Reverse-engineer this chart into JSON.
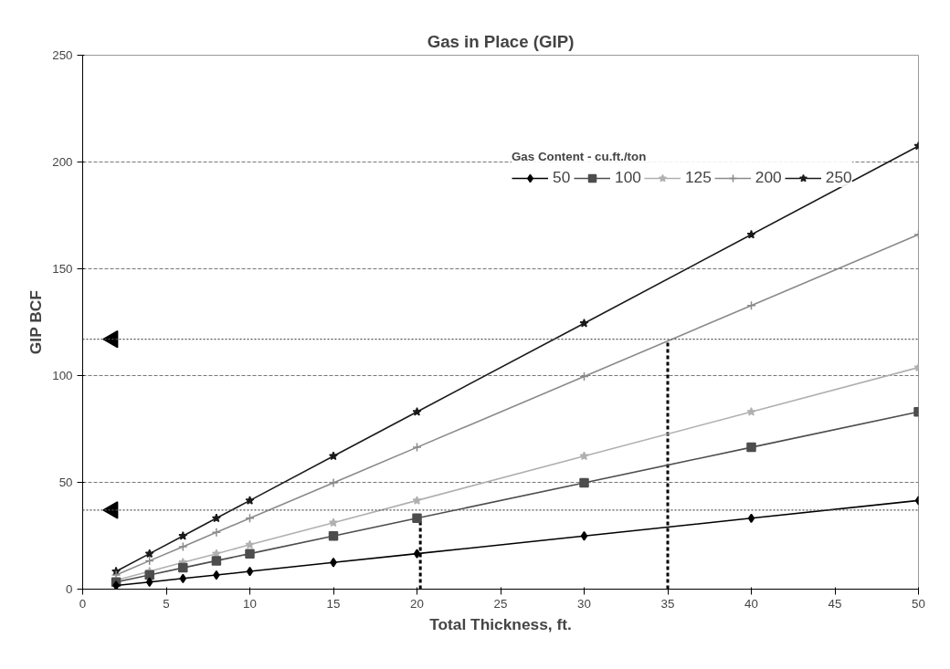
{
  "chart_data": {
    "type": "line",
    "title": "Gas in Place (GIP)",
    "xlabel": "Total Thickness, ft.",
    "ylabel": "GIP BCF",
    "legend_title": "Gas Content - cu.ft./ton",
    "legend": "top right",
    "grid": "y",
    "x": [
      2,
      4,
      6,
      8,
      10,
      15,
      20,
      30,
      40,
      50
    ],
    "xlim": [
      0,
      50
    ],
    "xticks": [
      0,
      5,
      10,
      15,
      20,
      25,
      30,
      35,
      40,
      45,
      50
    ],
    "ylim": [
      0,
      250
    ],
    "yticks": [
      0,
      50,
      100,
      150,
      200,
      250
    ],
    "series": [
      {
        "name": "50",
        "color": "#000000",
        "marker": "diamond",
        "values": [
          1.7,
          3.3,
          5,
          6.6,
          8.3,
          12.5,
          16.6,
          24.9,
          33.2,
          41.5
        ]
      },
      {
        "name": "100",
        "color": "#4d4d4d",
        "marker": "square",
        "values": [
          3.3,
          6.6,
          10,
          13.3,
          16.6,
          24.9,
          33.2,
          49.8,
          66.4,
          83
        ]
      },
      {
        "name": "125",
        "color": "#b0b0b0",
        "marker": "star",
        "values": [
          4.2,
          8.3,
          12.5,
          16.6,
          20.8,
          31.1,
          41.5,
          62.3,
          83,
          103.8
        ]
      },
      {
        "name": "200",
        "color": "#8a8a8a",
        "marker": "cross",
        "values": [
          6.6,
          13.3,
          19.9,
          26.6,
          33.2,
          49.8,
          66.4,
          99.6,
          132.8,
          166
        ]
      },
      {
        "name": "250",
        "color": "#1a1a1a",
        "marker": "star",
        "values": [
          8.3,
          16.6,
          24.9,
          33.2,
          41.5,
          62.3,
          83,
          124.5,
          166,
          207.5
        ]
      },
      {
        "type": "scatter",
        "color": "#000000",
        "marker": "triangle",
        "x": [
          1.8,
          1.8
        ],
        "values": [
          117,
          37
        ]
      },
      {
        "type": "line",
        "color": "#000000",
        "line_style": "dashed",
        "marker": "none",
        "x": [
          20.2,
          20.2
        ],
        "values": [
          0,
          33
        ]
      },
      {
        "type": "line",
        "color": "#000000",
        "line_style": "dashed",
        "marker": "none",
        "x": [
          35,
          35
        ],
        "values": [
          0,
          116
        ]
      }
    ],
    "ref_lines": [
      {
        "axis": "y",
        "value": 117,
        "color": "#555555",
        "line_style": "dotted"
      },
      {
        "axis": "y",
        "value": 37,
        "color": "#555555",
        "line_style": "dotted"
      }
    ]
  }
}
